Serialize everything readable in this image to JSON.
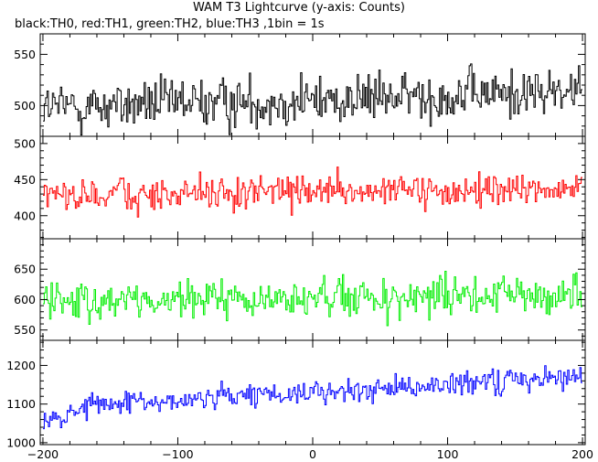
{
  "chart_data": {
    "type": "line",
    "title": "WAM T3 Lightcurve (y-axis: Counts)",
    "subtitle": "black:TH0, red:TH1, green:TH2, blue:TH3 ,1bin = 1s",
    "xlim": [
      -202,
      202
    ],
    "xticks": [
      -200,
      -100,
      0,
      100,
      200
    ],
    "points_per_series": 400,
    "panels": [
      {
        "name": "TH0",
        "color": "#000000",
        "ylim": [
          470,
          570
        ],
        "yticks": [
          500,
          550
        ],
        "trend": [
          [
            -200,
            498
          ],
          [
            -100,
            502
          ],
          [
            0,
            505
          ],
          [
            100,
            510
          ],
          [
            200,
            514
          ]
        ],
        "noise": 22
      },
      {
        "name": "TH1",
        "color": "#ff0000",
        "ylim": [
          368,
          510
        ],
        "yticks": [
          400,
          450,
          500
        ],
        "trend": [
          [
            -200,
            428
          ],
          [
            -100,
            430
          ],
          [
            0,
            432
          ],
          [
            100,
            434
          ],
          [
            200,
            436
          ]
        ],
        "noise": 20
      },
      {
        "name": "TH2",
        "color": "#00ee00",
        "ylim": [
          533,
          700
        ],
        "yticks": [
          550,
          600,
          650
        ],
        "trend": [
          [
            -200,
            598
          ],
          [
            -100,
            598
          ],
          [
            0,
            600
          ],
          [
            100,
            604
          ],
          [
            200,
            608
          ]
        ],
        "noise": 28
      },
      {
        "name": "TH3",
        "color": "#0000ff",
        "ylim": [
          995,
          1265
        ],
        "yticks": [
          1000,
          1100,
          1200
        ],
        "trend": [
          [
            -200,
            1045
          ],
          [
            -180,
            1080
          ],
          [
            -160,
            1100
          ],
          [
            -100,
            1110
          ],
          [
            0,
            1130
          ],
          [
            100,
            1150
          ],
          [
            200,
            1175
          ]
        ],
        "noise": 28
      }
    ]
  }
}
